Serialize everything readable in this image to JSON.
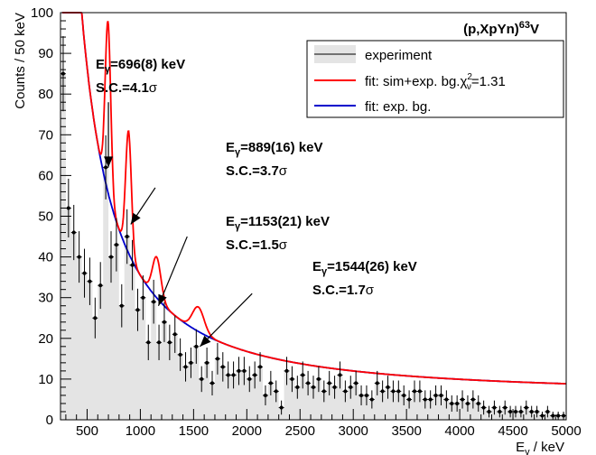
{
  "chart_data": {
    "type": "scatter",
    "title": "(p,XpYn)",
    "title_super": "63",
    "title_suffix": "V",
    "xlabel_main": "E",
    "xlabel_sub": "γ",
    "xlabel_rest": " / keV",
    "ylabel": "Counts / 50 keV",
    "xlim": [
      250,
      5000
    ],
    "ylim": [
      0,
      100
    ],
    "x_ticks": [
      500,
      1000,
      1500,
      2000,
      2500,
      3000,
      3500,
      4000,
      4500,
      5000
    ],
    "y_ticks": [
      0,
      10,
      20,
      30,
      40,
      50,
      60,
      70,
      80,
      90,
      100
    ],
    "grid": false,
    "legend_position": "top-right",
    "colors": {
      "data": "#000000",
      "fit": "#ff0000",
      "bg": "#0000cc",
      "hist_fill": "#e4e4e4"
    },
    "legend": [
      {
        "key": "data",
        "label": "experiment",
        "label_main": "experiment",
        "label_sub": "",
        "label_super": "",
        "label_tail": ""
      },
      {
        "key": "fit",
        "label": "fit: sim+exp. bg.χ²ν=1.31",
        "label_main": "fit: sim+exp. bg.χ",
        "label_super": "2",
        "label_sub": "ν",
        "label_tail": "=1.31"
      },
      {
        "key": "bg",
        "label": "fit: exp. bg.",
        "label_main": "fit: exp. bg.",
        "label_sub": "",
        "label_super": "",
        "label_tail": ""
      }
    ],
    "annotations": [
      {
        "line1_main": "E",
        "line1_sub": "γ",
        "line1_rest": "=696(8) keV",
        "line2_main": "S.C.=4.1",
        "line2_sym": "σ",
        "arrow_from": [
          700,
          78
        ],
        "arrow_to": [
          700,
          62
        ]
      },
      {
        "line1_main": "E",
        "line1_sub": "γ",
        "line1_rest": "=889(16) keV",
        "line2_main": "S.C.=3.7",
        "line2_sym": "σ",
        "arrow_from": [
          1140,
          57
        ],
        "arrow_to": [
          910,
          48
        ]
      },
      {
        "line1_main": "E",
        "line1_sub": "γ",
        "line1_rest": "=1153(21) keV",
        "line2_main": "S.C.=1.5",
        "line2_sym": "σ",
        "arrow_from": [
          1440,
          45
        ],
        "arrow_to": [
          1170,
          28
        ]
      },
      {
        "line1_main": "E",
        "line1_sub": "γ",
        "line1_rest": "=1544(26) keV",
        "line2_main": "S.C.=1.7",
        "line2_sym": "σ",
        "arrow_from": [
          2050,
          31
        ],
        "arrow_to": [
          1560,
          18
        ]
      }
    ],
    "series": [
      {
        "name": "experiment",
        "x": [
          275,
          325,
          375,
          425,
          475,
          525,
          575,
          625,
          675,
          725,
          775,
          825,
          875,
          925,
          975,
          1025,
          1075,
          1125,
          1175,
          1225,
          1275,
          1325,
          1375,
          1425,
          1475,
          1525,
          1575,
          1625,
          1675,
          1725,
          1775,
          1825,
          1875,
          1925,
          1975,
          2025,
          2075,
          2125,
          2175,
          2225,
          2275,
          2325,
          2375,
          2425,
          2475,
          2525,
          2575,
          2625,
          2675,
          2725,
          2775,
          2825,
          2875,
          2925,
          2975,
          3025,
          3075,
          3125,
          3175,
          3225,
          3275,
          3325,
          3375,
          3425,
          3475,
          3525,
          3575,
          3625,
          3675,
          3725,
          3775,
          3825,
          3875,
          3925,
          3975,
          4025,
          4075,
          4125,
          4175,
          4225,
          4275,
          4325,
          4375,
          4425,
          4475,
          4525,
          4575,
          4625,
          4675,
          4725,
          4775,
          4825,
          4875,
          4925,
          4975
        ],
        "y": [
          85,
          52,
          46,
          40,
          36,
          34,
          25,
          33,
          62,
          40,
          43,
          28,
          45,
          38,
          27,
          30,
          19,
          29,
          19,
          24,
          19,
          21,
          16,
          13,
          14,
          18,
          10,
          14,
          9,
          15,
          13,
          11,
          11,
          12,
          12,
          10,
          11,
          13,
          6,
          9,
          7,
          3,
          12,
          10,
          8,
          11,
          9,
          8,
          10,
          7,
          9,
          8,
          11,
          7,
          8,
          9,
          6,
          6,
          5,
          9,
          7,
          8,
          7,
          7,
          6,
          5,
          7,
          7,
          5,
          5,
          6,
          6,
          5,
          4,
          4,
          5,
          4,
          5,
          4,
          3,
          2,
          3,
          2,
          3,
          2,
          2,
          2,
          3,
          2,
          2,
          1,
          2,
          1,
          1,
          1
        ]
      }
    ]
  }
}
